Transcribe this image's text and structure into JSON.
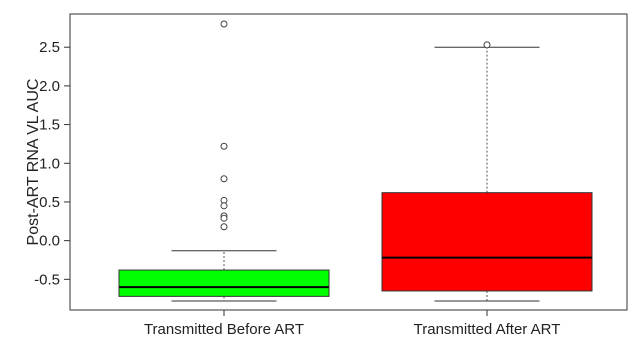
{
  "chart_data": {
    "type": "box",
    "title": "",
    "xlabel": "",
    "ylabel": "Post-ART RNA VL AUC",
    "ylim": [
      -0.9,
      2.95
    ],
    "yticks": [
      -0.5,
      0.0,
      0.5,
      1.0,
      1.5,
      2.0,
      2.5
    ],
    "ytick_labels": [
      "-0.5",
      "0.0",
      "0.5",
      "1.0",
      "1.5",
      "2.0",
      "2.5"
    ],
    "grid": false,
    "legend": "none",
    "categories": [
      "Transmitted Before ART",
      "Transmitted After ART"
    ],
    "boxes": [
      {
        "category": "Transmitted Before ART",
        "color": "#00ff00",
        "whisker_low": -0.78,
        "q1": -0.72,
        "median": -0.6,
        "q3": -0.38,
        "whisker_high": -0.13,
        "outliers": [
          2.8,
          1.22,
          0.8,
          0.52,
          0.45,
          0.32,
          0.29,
          0.18
        ]
      },
      {
        "category": "Transmitted After ART",
        "color": "#ff0000",
        "whisker_low": -0.78,
        "q1": -0.65,
        "median": -0.22,
        "q3": 0.62,
        "whisker_high": 2.5,
        "outliers": [
          2.53
        ]
      }
    ]
  }
}
